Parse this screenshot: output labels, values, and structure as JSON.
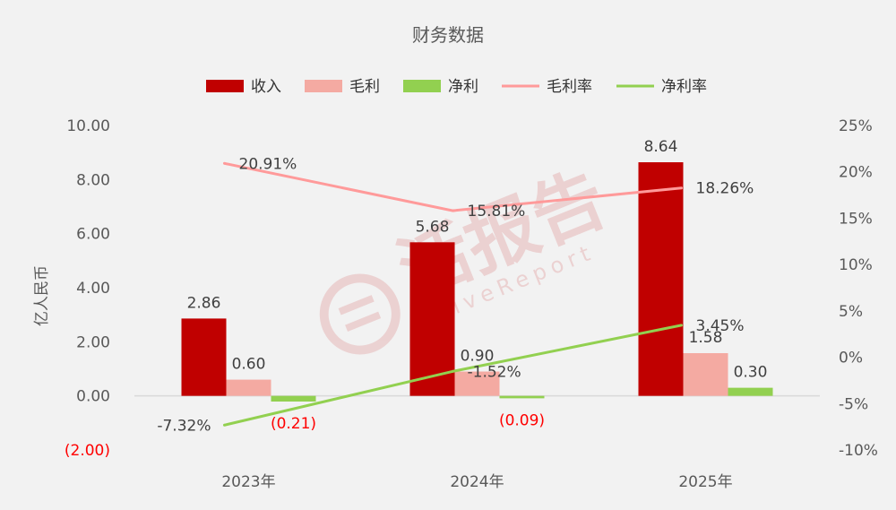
{
  "chart_data": {
    "type": "bar",
    "title": "财务数据",
    "ylabel": "亿人民币",
    "categories": [
      "2023年",
      "2024年",
      "2025年"
    ],
    "y_left": {
      "min": -2,
      "max": 10,
      "ticks": [
        10,
        8,
        6,
        4,
        2,
        0,
        -2
      ],
      "tick_labels": [
        "10.00",
        "8.00",
        "6.00",
        "4.00",
        "2.00",
        "0.00",
        "(2.00)"
      ]
    },
    "y_right": {
      "min": -10,
      "max": 25,
      "ticks": [
        25,
        20,
        15,
        10,
        5,
        0,
        -5,
        -10
      ],
      "tick_labels": [
        "25%",
        "20%",
        "15%",
        "10%",
        "5%",
        "0%",
        "-5%",
        "-10%"
      ]
    },
    "series": [
      {
        "name": "收入",
        "kind": "bar",
        "axis": "left",
        "color": "#c00000",
        "values": [
          2.86,
          5.68,
          8.64
        ],
        "labels": [
          "2.86",
          "5.68",
          "8.64"
        ]
      },
      {
        "name": "毛利",
        "kind": "bar",
        "axis": "left",
        "color": "#f4aaa2",
        "values": [
          0.6,
          0.9,
          1.58
        ],
        "labels": [
          "0.60",
          "0.90",
          "1.58"
        ]
      },
      {
        "name": "净利",
        "kind": "bar",
        "axis": "left",
        "color": "#92d050",
        "values": [
          -0.21,
          -0.09,
          0.3
        ],
        "labels": [
          "(0.21)",
          "(0.09)",
          "0.30"
        ]
      },
      {
        "name": "毛利率",
        "kind": "line",
        "axis": "right",
        "color": "#ff9a9a",
        "values": [
          20.91,
          15.81,
          18.26
        ],
        "labels": [
          "20.91%",
          "15.81%",
          "18.26%"
        ],
        "label_color": "#ff0000"
      },
      {
        "name": "净利率",
        "kind": "line",
        "axis": "right",
        "color": "#92d050",
        "values": [
          -7.32,
          -1.52,
          3.45
        ],
        "labels": [
          "-7.32%",
          "-1.52%",
          "3.45%"
        ],
        "label_color": "#00b050"
      }
    ],
    "legend_position": "top",
    "grid": false
  },
  "watermark": "活报告 LiveReport",
  "colors": {
    "background": "#f2f2f2",
    "axis_text": "#595959",
    "negative_label": "#ff0000"
  }
}
